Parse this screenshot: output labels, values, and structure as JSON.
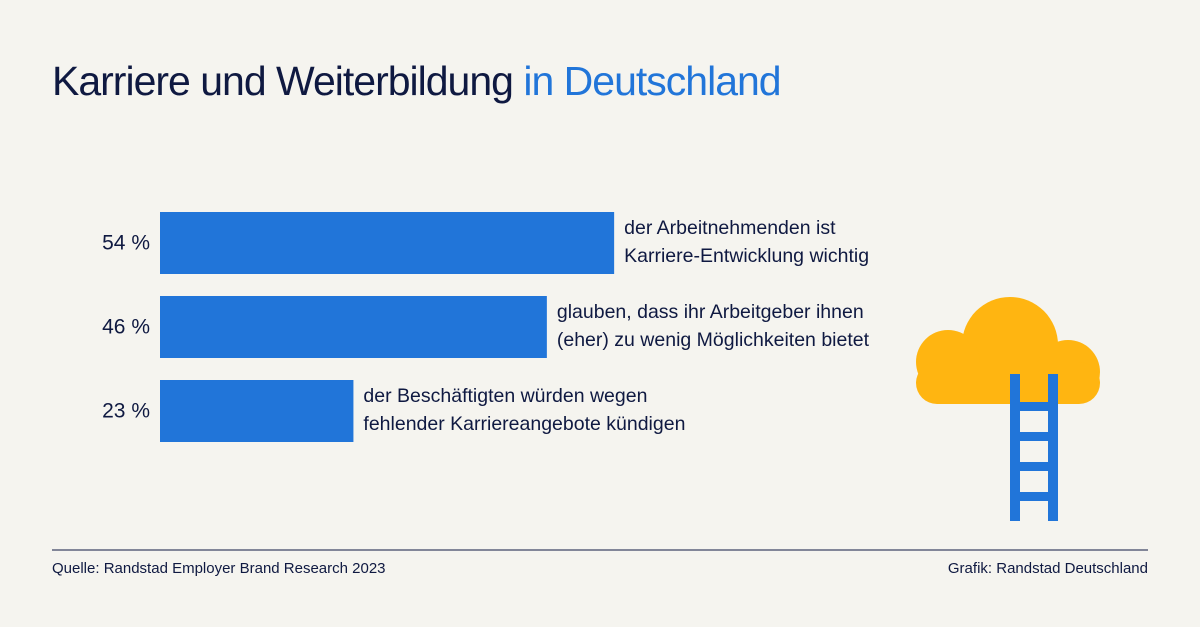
{
  "chart_data": {
    "type": "bar",
    "title": "Karriere und Weiterbildung",
    "title_highlight": "in Deutschland",
    "categories": [
      [
        "der Arbeitnehmenden ist",
        "Karriere-Entwicklung wichtig"
      ],
      [
        "glauben, dass ihr Arbeitgeber ihnen",
        "(eher) zu wenig Möglichkeiten bietet"
      ],
      [
        "der Beschäftigten würden wegen",
        "fehlender Karriereangebote kündigen"
      ]
    ],
    "values": [
      54,
      46,
      23
    ],
    "value_labels": [
      "54 %",
      "46 %",
      "23 %"
    ],
    "color": "#2175d9",
    "source": "Quelle: Randstad Employer Brand Research 2023",
    "credit": "Grafik: Randstad Deutschland"
  }
}
